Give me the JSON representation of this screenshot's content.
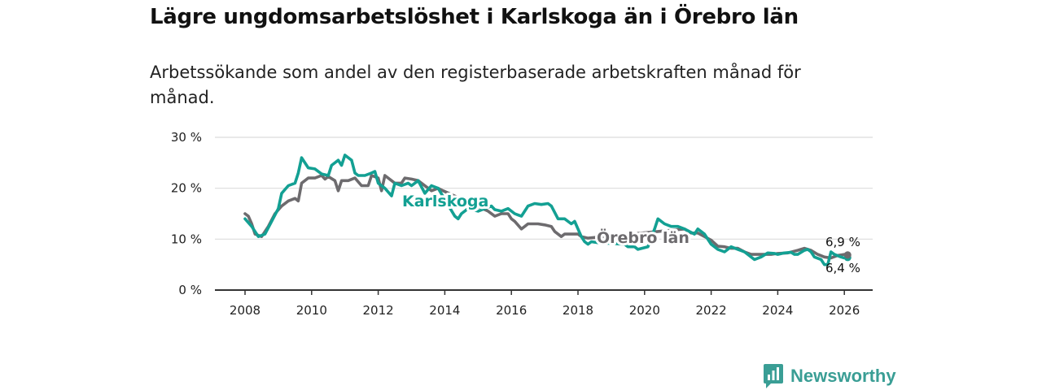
{
  "title": "Lägre ungdomsarbetslöshet i Karlskoga än i Örebro län",
  "subtitle": "Arbetssökande som andel av den registerbaserade arbetskraften månad för månad.",
  "brand": {
    "name": "Newsworthy",
    "icon": "bar-chart-speech-icon"
  },
  "colors": {
    "karlskoga": "#13a093",
    "orebro": "#6d6b6e",
    "grid": "#dcdcdc",
    "axis": "#333333"
  },
  "chart_data": {
    "type": "line",
    "title": "Lägre ungdomsarbetslöshet i Karlskoga än i Örebro län",
    "xlabel": "",
    "ylabel": "",
    "xlim": [
      2007.5,
      2026.8
    ],
    "ylim": [
      0,
      30
    ],
    "grid": true,
    "y_ticks": [
      0,
      10,
      20,
      30
    ],
    "y_tick_labels": [
      "0 %",
      "10 %",
      "20 %",
      "30 %"
    ],
    "x_ticks": [
      2008,
      2010,
      2012,
      2014,
      2016,
      2018,
      2020,
      2022,
      2024,
      2026
    ],
    "x_tick_labels": [
      "2008",
      "2010",
      "2012",
      "2014",
      "2016",
      "2018",
      "2020",
      "2022",
      "2024",
      "2026"
    ],
    "series": [
      {
        "name": "Karlskoga",
        "label": "Karlskoga",
        "end_label": "6,4 %",
        "color": "#13a093",
        "points": [
          [
            2008.0,
            14
          ],
          [
            2008.2,
            12.5
          ],
          [
            2008.4,
            10.5
          ],
          [
            2008.6,
            11
          ],
          [
            2008.8,
            13.5
          ],
          [
            2009.0,
            16
          ],
          [
            2009.1,
            19
          ],
          [
            2009.3,
            20.5
          ],
          [
            2009.5,
            21
          ],
          [
            2009.6,
            23
          ],
          [
            2009.7,
            26
          ],
          [
            2009.9,
            24
          ],
          [
            2010.1,
            23.8
          ],
          [
            2010.3,
            22.8
          ],
          [
            2010.5,
            22.5
          ],
          [
            2010.6,
            24.5
          ],
          [
            2010.8,
            25.5
          ],
          [
            2010.9,
            24.5
          ],
          [
            2011.0,
            26.5
          ],
          [
            2011.2,
            25.5
          ],
          [
            2011.3,
            23
          ],
          [
            2011.4,
            22.5
          ],
          [
            2011.6,
            22.5
          ],
          [
            2011.8,
            23
          ],
          [
            2011.9,
            23.3
          ],
          [
            2012.0,
            21
          ],
          [
            2012.2,
            20
          ],
          [
            2012.4,
            18.5
          ],
          [
            2012.5,
            21
          ],
          [
            2012.7,
            20.5
          ],
          [
            2012.9,
            21
          ],
          [
            2013.0,
            20.5
          ],
          [
            2013.2,
            21.5
          ],
          [
            2013.4,
            19
          ],
          [
            2013.6,
            20.5
          ],
          [
            2013.8,
            20
          ],
          [
            2014.3,
            14.5
          ],
          [
            2014.4,
            14
          ],
          [
            2014.5,
            15
          ],
          [
            2014.7,
            16
          ],
          [
            2015.0,
            15.5
          ],
          [
            2015.2,
            16
          ],
          [
            2015.4,
            16.5
          ],
          [
            2015.5,
            15.8
          ],
          [
            2015.7,
            15.5
          ],
          [
            2015.9,
            16
          ],
          [
            2016.1,
            15
          ],
          [
            2016.3,
            14.5
          ],
          [
            2016.5,
            16.5
          ],
          [
            2016.7,
            17
          ],
          [
            2016.9,
            16.8
          ],
          [
            2017.1,
            17
          ],
          [
            2017.2,
            16.5
          ],
          [
            2017.4,
            14
          ],
          [
            2017.6,
            14
          ],
          [
            2017.8,
            13
          ],
          [
            2017.9,
            13.5
          ],
          [
            2018.1,
            10.5
          ],
          [
            2018.2,
            9.5
          ],
          [
            2018.3,
            9
          ],
          [
            2018.4,
            9.5
          ],
          [
            2018.6,
            9.3
          ],
          [
            2019.4,
            9
          ],
          [
            2019.5,
            8.5
          ],
          [
            2019.7,
            8.5
          ],
          [
            2019.8,
            8
          ],
          [
            2020.1,
            8.5
          ],
          [
            2020.3,
            12
          ],
          [
            2020.4,
            14
          ],
          [
            2020.6,
            13
          ],
          [
            2020.8,
            12.5
          ],
          [
            2021.0,
            12.5
          ],
          [
            2021.2,
            12
          ],
          [
            2021.5,
            11
          ],
          [
            2021.6,
            12
          ],
          [
            2021.8,
            11
          ],
          [
            2022.0,
            9
          ],
          [
            2022.2,
            8
          ],
          [
            2022.4,
            7.5
          ],
          [
            2022.6,
            8.5
          ],
          [
            2022.8,
            8
          ],
          [
            2023.0,
            7.5
          ],
          [
            2023.2,
            6.5
          ],
          [
            2023.3,
            6
          ],
          [
            2023.5,
            6.5
          ],
          [
            2023.7,
            7.3
          ],
          [
            2023.9,
            7.2
          ],
          [
            2024.0,
            7
          ],
          [
            2024.2,
            7.3
          ],
          [
            2024.4,
            7.4
          ],
          [
            2024.5,
            7
          ],
          [
            2024.6,
            7
          ],
          [
            2024.8,
            7.8
          ],
          [
            2024.9,
            8
          ],
          [
            2025.0,
            7.5
          ],
          [
            2025.1,
            6.5
          ],
          [
            2025.3,
            6
          ],
          [
            2025.4,
            5
          ],
          [
            2025.5,
            5
          ],
          [
            2025.6,
            7.5
          ],
          [
            2025.7,
            7
          ],
          [
            2025.9,
            6.5
          ],
          [
            2026.0,
            6.3
          ],
          [
            2026.1,
            6.4
          ]
        ]
      },
      {
        "name": "Örebro län",
        "label": "Örebro län",
        "end_label": "6,9 %",
        "color": "#6d6b6e",
        "points": [
          [
            2008.0,
            15
          ],
          [
            2008.1,
            14.5
          ],
          [
            2008.2,
            13
          ],
          [
            2008.3,
            11
          ],
          [
            2008.5,
            10.5
          ],
          [
            2008.7,
            12.5
          ],
          [
            2008.9,
            15
          ],
          [
            2009.1,
            16.5
          ],
          [
            2009.3,
            17.5
          ],
          [
            2009.5,
            18
          ],
          [
            2009.6,
            17.5
          ],
          [
            2009.7,
            21
          ],
          [
            2009.9,
            22
          ],
          [
            2010.1,
            22
          ],
          [
            2010.3,
            22.5
          ],
          [
            2010.4,
            21.8
          ],
          [
            2010.5,
            22.3
          ],
          [
            2010.7,
            21.5
          ],
          [
            2010.8,
            19.5
          ],
          [
            2010.9,
            21.5
          ],
          [
            2011.1,
            21.5
          ],
          [
            2011.3,
            22
          ],
          [
            2011.5,
            20.5
          ],
          [
            2011.7,
            20.5
          ],
          [
            2011.8,
            22.5
          ],
          [
            2012.0,
            22
          ],
          [
            2012.1,
            19.5
          ],
          [
            2012.2,
            22.5
          ],
          [
            2012.4,
            21.5
          ],
          [
            2012.5,
            21
          ],
          [
            2012.7,
            21
          ],
          [
            2012.8,
            22
          ],
          [
            2013.0,
            21.8
          ],
          [
            2013.2,
            21.5
          ],
          [
            2013.3,
            21
          ],
          [
            2013.5,
            20
          ],
          [
            2013.6,
            19.5
          ],
          [
            2013.8,
            20
          ],
          [
            2013.95,
            19.5
          ],
          [
            2015.3,
            15.5
          ],
          [
            2015.5,
            14.5
          ],
          [
            2015.7,
            15
          ],
          [
            2015.9,
            15
          ],
          [
            2016.0,
            14
          ],
          [
            2016.1,
            13.5
          ],
          [
            2016.3,
            12
          ],
          [
            2016.4,
            12.5
          ],
          [
            2016.5,
            13
          ],
          [
            2016.8,
            13
          ],
          [
            2017.0,
            12.8
          ],
          [
            2017.2,
            12.5
          ],
          [
            2017.3,
            11.5
          ],
          [
            2017.5,
            10.5
          ],
          [
            2017.6,
            11
          ],
          [
            2017.8,
            11
          ],
          [
            2018.0,
            11
          ],
          [
            2018.1,
            10.5
          ],
          [
            2018.3,
            10.2
          ],
          [
            2021.2,
            12
          ],
          [
            2021.4,
            11.2
          ],
          [
            2021.6,
            11.2
          ],
          [
            2021.8,
            10.5
          ],
          [
            2022.0,
            9.8
          ],
          [
            2022.2,
            8.6
          ],
          [
            2022.4,
            8.5
          ],
          [
            2022.6,
            8.2
          ],
          [
            2022.8,
            8.2
          ],
          [
            2023.0,
            7.5
          ],
          [
            2023.2,
            7
          ],
          [
            2023.4,
            7
          ],
          [
            2023.6,
            7
          ],
          [
            2023.8,
            7
          ],
          [
            2024.0,
            7.2
          ],
          [
            2024.3,
            7.3
          ],
          [
            2024.6,
            7.8
          ],
          [
            2024.8,
            8.2
          ],
          [
            2025.0,
            7.8
          ],
          [
            2025.2,
            7
          ],
          [
            2025.4,
            6.5
          ],
          [
            2025.6,
            6.3
          ],
          [
            2025.8,
            6.8
          ],
          [
            2026.0,
            7
          ],
          [
            2026.1,
            6.9
          ]
        ]
      }
    ]
  }
}
